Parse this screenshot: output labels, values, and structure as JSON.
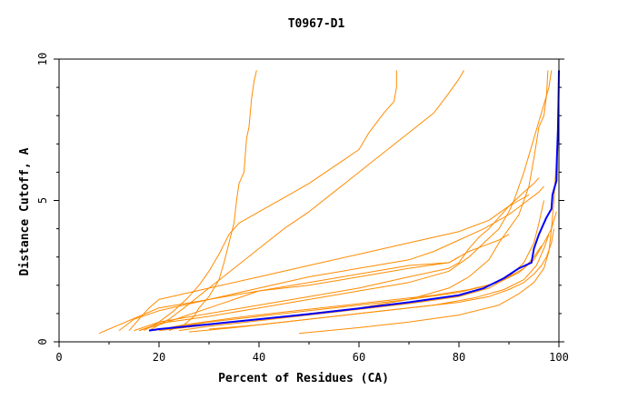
{
  "chart_data": {
    "type": "line",
    "title": "T0967-D1",
    "xlabel": "Percent of Residues (CA)",
    "ylabel": "Distance Cutoff, A",
    "xlim": [
      0,
      100
    ],
    "ylim": [
      0,
      10
    ],
    "x_ticks": [
      "0",
      "20",
      "40",
      "60",
      "80",
      "100"
    ],
    "y_ticks": [
      "0",
      "5",
      "10"
    ],
    "grid": false,
    "legend": "none",
    "colors": {
      "highlight": "#0000ff",
      "others": "#ff8c00",
      "axes": "#000000"
    },
    "series": [
      {
        "highlight": true,
        "points": [
          [
            18,
            0.4
          ],
          [
            20,
            0.45
          ],
          [
            30,
            0.62
          ],
          [
            40,
            0.8
          ],
          [
            50,
            0.98
          ],
          [
            60,
            1.18
          ],
          [
            70,
            1.4
          ],
          [
            80,
            1.65
          ],
          [
            85,
            1.9
          ],
          [
            89,
            2.25
          ],
          [
            92,
            2.6
          ],
          [
            94.5,
            2.8
          ],
          [
            95,
            3.3
          ],
          [
            96,
            3.8
          ],
          [
            97.5,
            4.4
          ],
          [
            98.5,
            4.7
          ],
          [
            98.7,
            5.2
          ],
          [
            99.5,
            5.7
          ],
          [
            99.6,
            6.5
          ],
          [
            99.8,
            7.5
          ],
          [
            99.9,
            8.5
          ],
          [
            100,
            9.6
          ]
        ]
      },
      {
        "points": [
          [
            22,
            0.4
          ],
          [
            25,
            0.6
          ],
          [
            27,
            0.9
          ],
          [
            28,
            1.2
          ],
          [
            30,
            1.6
          ],
          [
            32,
            2.2
          ],
          [
            33,
            2.8
          ],
          [
            34,
            3.5
          ],
          [
            35,
            4.2
          ],
          [
            35.5,
            5.0
          ],
          [
            36,
            5.6
          ],
          [
            37,
            6.0
          ],
          [
            37.5,
            7.2
          ],
          [
            38,
            7.6
          ],
          [
            38.5,
            8.6
          ],
          [
            39,
            9.2
          ],
          [
            39.5,
            9.6
          ]
        ]
      },
      {
        "points": [
          [
            17,
            0.4
          ],
          [
            20,
            0.7
          ],
          [
            23,
            1.1
          ],
          [
            26,
            1.6
          ],
          [
            28,
            2.0
          ],
          [
            30,
            2.5
          ],
          [
            32,
            3.1
          ],
          [
            34,
            3.8
          ],
          [
            36,
            4.2
          ],
          [
            40,
            4.6
          ],
          [
            45,
            5.1
          ],
          [
            50,
            5.6
          ],
          [
            55,
            6.2
          ],
          [
            60,
            6.8
          ],
          [
            62,
            7.4
          ],
          [
            65,
            8.1
          ],
          [
            67,
            8.5
          ],
          [
            67.5,
            9.0
          ],
          [
            67.5,
            9.6
          ]
        ]
      },
      {
        "points": [
          [
            18,
            0.4
          ],
          [
            22,
            0.8
          ],
          [
            25,
            1.2
          ],
          [
            30,
            1.9
          ],
          [
            35,
            2.6
          ],
          [
            40,
            3.3
          ],
          [
            45,
            4.0
          ],
          [
            50,
            4.6
          ],
          [
            55,
            5.3
          ],
          [
            60,
            6.0
          ],
          [
            65,
            6.7
          ],
          [
            70,
            7.4
          ],
          [
            75,
            8.1
          ],
          [
            78,
            8.8
          ],
          [
            80,
            9.3
          ],
          [
            81,
            9.6
          ]
        ]
      },
      {
        "points": [
          [
            16,
            0.4
          ],
          [
            20,
            0.65
          ],
          [
            30,
            0.9
          ],
          [
            40,
            1.2
          ],
          [
            50,
            1.5
          ],
          [
            60,
            1.8
          ],
          [
            70,
            2.1
          ],
          [
            78,
            2.5
          ],
          [
            82,
            3.0
          ],
          [
            85,
            3.5
          ],
          [
            88,
            4.0
          ],
          [
            90,
            4.6
          ],
          [
            91,
            5.0
          ],
          [
            92,
            5.5
          ],
          [
            93,
            6.0
          ],
          [
            94,
            6.6
          ],
          [
            95,
            7.2
          ],
          [
            96,
            7.8
          ],
          [
            97,
            8.4
          ],
          [
            98,
            9.0
          ],
          [
            98.5,
            9.6
          ]
        ]
      },
      {
        "points": [
          [
            48,
            0.3
          ],
          [
            60,
            0.5
          ],
          [
            70,
            0.7
          ],
          [
            80,
            0.95
          ],
          [
            88,
            1.3
          ],
          [
            92,
            1.7
          ],
          [
            95,
            2.1
          ],
          [
            97,
            2.6
          ],
          [
            98,
            3.2
          ],
          [
            98.5,
            4.0
          ],
          [
            99,
            5.0
          ],
          [
            99.5,
            6.5
          ],
          [
            100,
            8.0
          ]
        ]
      },
      {
        "points": [
          [
            20,
            0.4
          ],
          [
            30,
            0.6
          ],
          [
            40,
            0.8
          ],
          [
            50,
            1.0
          ],
          [
            60,
            1.2
          ],
          [
            70,
            1.5
          ],
          [
            78,
            1.9
          ],
          [
            82,
            2.3
          ],
          [
            86,
            2.9
          ],
          [
            88,
            3.5
          ],
          [
            90,
            4.0
          ],
          [
            92,
            4.5
          ],
          [
            94,
            5.5
          ],
          [
            95,
            6.5
          ],
          [
            96,
            7.6
          ],
          [
            97,
            8.0
          ],
          [
            97.5,
            8.7
          ],
          [
            97.8,
            9.6
          ]
        ]
      },
      {
        "points": [
          [
            14,
            0.4
          ],
          [
            16,
            0.8
          ],
          [
            18,
            1.2
          ],
          [
            20,
            1.5
          ],
          [
            30,
            1.9
          ],
          [
            40,
            2.3
          ],
          [
            50,
            2.7
          ],
          [
            60,
            3.1
          ],
          [
            70,
            3.5
          ],
          [
            80,
            3.9
          ],
          [
            86,
            4.3
          ],
          [
            90,
            4.8
          ],
          [
            93,
            5.3
          ],
          [
            95,
            5.6
          ],
          [
            96,
            5.8
          ]
        ]
      },
      {
        "points": [
          [
            12,
            0.4
          ],
          [
            15,
            0.8
          ],
          [
            20,
            1.1
          ],
          [
            30,
            1.5
          ],
          [
            40,
            1.9
          ],
          [
            50,
            2.3
          ],
          [
            60,
            2.6
          ],
          [
            70,
            2.9
          ],
          [
            75,
            3.2
          ],
          [
            80,
            3.6
          ],
          [
            85,
            4.0
          ],
          [
            90,
            4.5
          ],
          [
            93,
            4.9
          ],
          [
            96,
            5.3
          ],
          [
            97,
            5.5
          ]
        ]
      },
      {
        "points": [
          [
            15,
            0.4
          ],
          [
            20,
            0.7
          ],
          [
            30,
            1.0
          ],
          [
            40,
            1.3
          ],
          [
            50,
            1.6
          ],
          [
            60,
            1.9
          ],
          [
            70,
            2.3
          ],
          [
            78,
            2.6
          ],
          [
            80,
            2.8
          ],
          [
            82,
            3.3
          ],
          [
            84,
            3.7
          ],
          [
            86,
            4.0
          ],
          [
            88,
            4.4
          ],
          [
            90,
            4.8
          ],
          [
            92,
            5.0
          ],
          [
            94,
            5.2
          ]
        ]
      },
      {
        "points": [
          [
            24,
            0.4
          ],
          [
            30,
            0.55
          ],
          [
            40,
            0.75
          ],
          [
            50,
            0.95
          ],
          [
            60,
            1.15
          ],
          [
            70,
            1.35
          ],
          [
            80,
            1.6
          ],
          [
            86,
            1.9
          ],
          [
            90,
            2.3
          ],
          [
            93,
            2.8
          ],
          [
            95,
            3.5
          ],
          [
            96,
            4.2
          ],
          [
            97,
            5.0
          ]
        ]
      },
      {
        "points": [
          [
            26,
            0.35
          ],
          [
            35,
            0.5
          ],
          [
            45,
            0.7
          ],
          [
            55,
            0.9
          ],
          [
            65,
            1.1
          ],
          [
            75,
            1.3
          ],
          [
            83,
            1.55
          ],
          [
            89,
            1.85
          ],
          [
            93,
            2.2
          ],
          [
            95.5,
            2.7
          ],
          [
            97,
            3.3
          ],
          [
            98,
            3.8
          ]
        ]
      },
      {
        "points": [
          [
            19,
            0.4
          ],
          [
            25,
            0.6
          ],
          [
            35,
            0.85
          ],
          [
            45,
            1.05
          ],
          [
            55,
            1.25
          ],
          [
            65,
            1.45
          ],
          [
            75,
            1.65
          ],
          [
            82,
            1.85
          ],
          [
            88,
            2.1
          ],
          [
            92,
            2.45
          ],
          [
            95,
            2.9
          ],
          [
            97,
            3.5
          ],
          [
            98.5,
            4.0
          ],
          [
            99.5,
            4.6
          ]
        ]
      },
      {
        "points": [
          [
            21,
            0.45
          ],
          [
            30,
            0.7
          ],
          [
            40,
            0.9
          ],
          [
            50,
            1.1
          ],
          [
            60,
            1.3
          ],
          [
            70,
            1.5
          ],
          [
            80,
            1.75
          ],
          [
            86,
            2.0
          ],
          [
            90,
            2.3
          ],
          [
            93,
            2.6
          ],
          [
            95,
            3.0
          ],
          [
            96.5,
            3.4
          ]
        ]
      },
      {
        "points": [
          [
            16,
            0.4
          ],
          [
            20,
            0.6
          ],
          [
            25,
            0.9
          ],
          [
            30,
            1.2
          ],
          [
            35,
            1.5
          ],
          [
            40,
            1.8
          ],
          [
            50,
            2.1
          ],
          [
            60,
            2.4
          ],
          [
            70,
            2.7
          ],
          [
            78,
            2.8
          ],
          [
            80,
            3.0
          ],
          [
            82,
            3.2
          ],
          [
            85,
            3.4
          ],
          [
            88,
            3.6
          ],
          [
            90,
            3.8
          ]
        ]
      },
      {
        "points": [
          [
            30,
            0.45
          ],
          [
            40,
            0.6
          ],
          [
            50,
            0.8
          ],
          [
            60,
            1.0
          ],
          [
            70,
            1.2
          ],
          [
            80,
            1.4
          ],
          [
            86,
            1.6
          ],
          [
            90,
            1.85
          ],
          [
            93,
            2.1
          ],
          [
            95,
            2.4
          ],
          [
            96.5,
            2.7
          ],
          [
            97.5,
            3.0
          ],
          [
            98.5,
            3.5
          ],
          [
            99,
            4.0
          ]
        ]
      },
      {
        "points": [
          [
            8,
            0.3
          ],
          [
            12,
            0.6
          ],
          [
            16,
            0.9
          ],
          [
            20,
            1.2
          ],
          [
            30,
            1.5
          ],
          [
            40,
            1.8
          ],
          [
            50,
            2.0
          ],
          [
            60,
            2.3
          ],
          [
            70,
            2.6
          ],
          [
            78,
            2.8
          ],
          [
            80,
            3.0
          ]
        ]
      }
    ]
  }
}
